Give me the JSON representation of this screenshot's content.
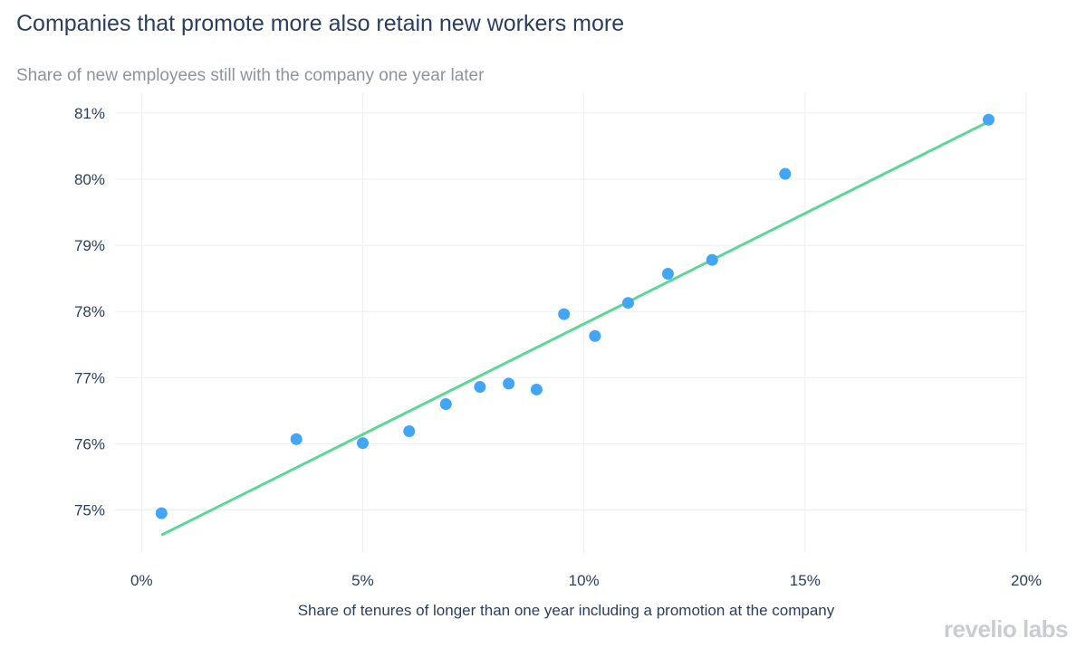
{
  "chart_data": {
    "type": "scatter",
    "title": "Companies that promote more also retain new workers more",
    "subtitle": "Share of new employees still with the company one year later",
    "xlabel": "Share of tenures of longer than one year including a promotion at the company",
    "ylabel": "",
    "xlim": [
      -0.006,
      0.2
    ],
    "ylim": [
      74.35,
      81.3
    ],
    "xticks": [
      {
        "value": 0.0,
        "label": "0%"
      },
      {
        "value": 0.05,
        "label": "5%"
      },
      {
        "value": 0.1,
        "label": "10%"
      },
      {
        "value": 0.15,
        "label": "15%"
      },
      {
        "value": 0.2,
        "label": "20%"
      }
    ],
    "yticks": [
      {
        "value": 75,
        "label": "75%"
      },
      {
        "value": 76,
        "label": "76%"
      },
      {
        "value": 77,
        "label": "77%"
      },
      {
        "value": 78,
        "label": "78%"
      },
      {
        "value": 79,
        "label": "79%"
      },
      {
        "value": 80,
        "label": "80%"
      },
      {
        "value": 81,
        "label": "81%"
      }
    ],
    "grid": true,
    "series": [
      {
        "kind": "points",
        "color": "#42a5f5",
        "x": [
          0.0045,
          0.035,
          0.05,
          0.0605,
          0.0688,
          0.0765,
          0.083,
          0.0893,
          0.0955,
          0.1025,
          0.11,
          0.119,
          0.129,
          0.1455,
          0.1915
        ],
        "y": [
          74.95,
          76.07,
          76.01,
          76.19,
          76.6,
          76.86,
          76.91,
          76.82,
          77.96,
          77.63,
          78.13,
          78.57,
          78.78,
          80.08,
          80.9
        ]
      },
      {
        "kind": "trendline",
        "color": "#5ad895",
        "x": [
          0.0045,
          0.1915
        ],
        "y": [
          74.62,
          80.87
        ]
      }
    ]
  },
  "brand": {
    "text": "revelio labs"
  }
}
